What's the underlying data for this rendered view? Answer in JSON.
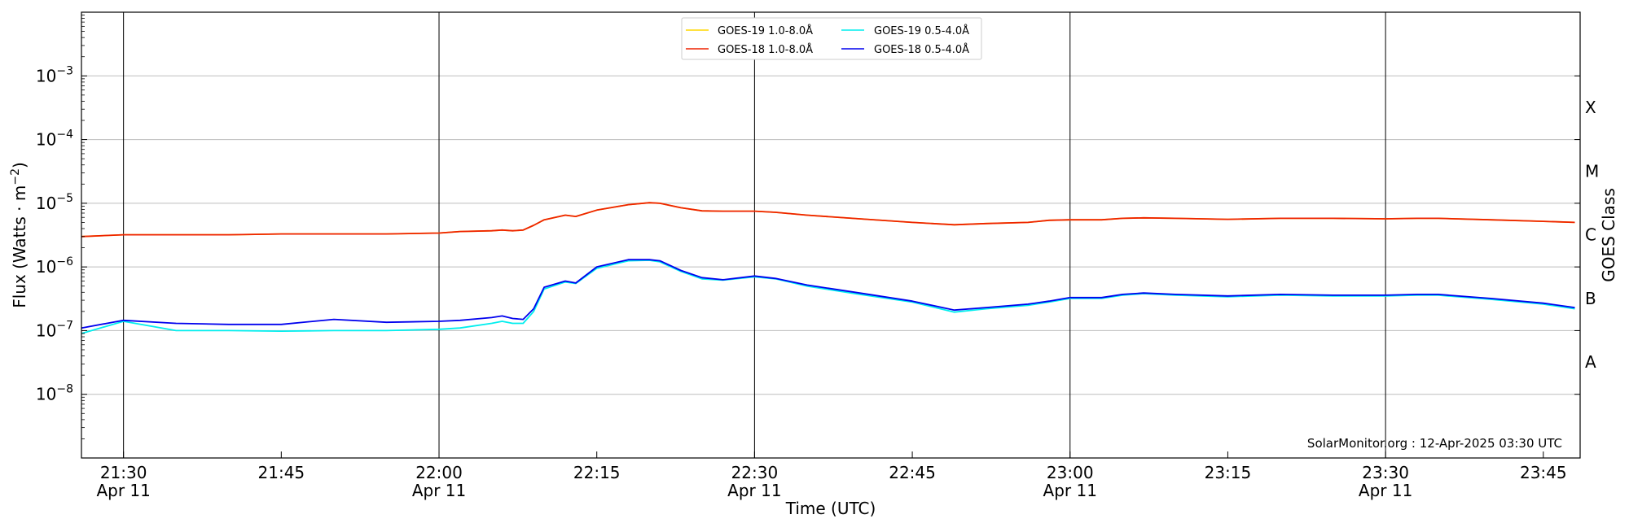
{
  "chart_data": {
    "type": "line",
    "title": "",
    "xlabel": "Time (UTC)",
    "ylabel": "Flux (Watts · m⁻²)",
    "ylabel_parts": {
      "base": "Flux (Watts · m",
      "exponent": "−2",
      "close": ")"
    },
    "right_ylabel": "GOES Class",
    "y_scale": "log",
    "ylim": [
      1e-09,
      0.01
    ],
    "xlim": [
      "2025-04-11 21:26:00",
      "2025-04-11 23:48:30"
    ],
    "grid": {
      "horizontal": true,
      "vertical_major": true
    },
    "legend_position": "top-center",
    "watermark": "SolarMonitor.org : 12-Apr-2025 03:30 UTC",
    "y_ticks": [
      {
        "value": 1e-08,
        "mantissa": "10",
        "exponent": "−8"
      },
      {
        "value": 1e-07,
        "mantissa": "10",
        "exponent": "−7"
      },
      {
        "value": 1e-06,
        "mantissa": "10",
        "exponent": "−6"
      },
      {
        "value": 1e-05,
        "mantissa": "10",
        "exponent": "−5"
      },
      {
        "value": 0.0001,
        "mantissa": "10",
        "exponent": "−4"
      },
      {
        "value": 0.001,
        "mantissa": "10",
        "exponent": "−3"
      }
    ],
    "x_ticks": [
      {
        "time": "21:30",
        "date": "Apr 11",
        "major": true
      },
      {
        "time": "21:45",
        "date": "",
        "major": false
      },
      {
        "time": "22:00",
        "date": "Apr 11",
        "major": true
      },
      {
        "time": "22:15",
        "date": "",
        "major": false
      },
      {
        "time": "22:30",
        "date": "Apr 11",
        "major": true
      },
      {
        "time": "22:45",
        "date": "",
        "major": false
      },
      {
        "time": "23:00",
        "date": "Apr 11",
        "major": true
      },
      {
        "time": "23:15",
        "date": "",
        "major": false
      },
      {
        "time": "23:30",
        "date": "Apr 11",
        "major": true
      },
      {
        "time": "23:45",
        "date": "",
        "major": false
      }
    ],
    "goes_classes": [
      {
        "label": "A",
        "flux": 3.2e-08
      },
      {
        "label": "B",
        "flux": 3.2e-07
      },
      {
        "label": "C",
        "flux": 3.2e-06
      },
      {
        "label": "M",
        "flux": 3.2e-05
      },
      {
        "label": "X",
        "flux": 0.00032
      }
    ],
    "x": [
      "21:26",
      "21:30",
      "21:35",
      "21:40",
      "21:45",
      "21:50",
      "21:55",
      "22:00",
      "22:02",
      "22:05",
      "22:06",
      "22:07",
      "22:08",
      "22:09",
      "22:10",
      "22:12",
      "22:13",
      "22:15",
      "22:18",
      "22:20",
      "22:21",
      "22:23",
      "22:25",
      "22:27",
      "22:30",
      "22:32",
      "22:35",
      "22:40",
      "22:45",
      "22:49",
      "22:52",
      "22:56",
      "22:58",
      "23:00",
      "23:03",
      "23:05",
      "23:07",
      "23:10",
      "23:15",
      "23:20",
      "23:25",
      "23:30",
      "23:33",
      "23:35",
      "23:40",
      "23:45",
      "23:48"
    ],
    "series": [
      {
        "name": "GOES-19 1.0-8.0Å",
        "color": "#ffd700",
        "values": [
          3e-06,
          3.2e-06,
          3.2e-06,
          3.2e-06,
          3.3e-06,
          3.3e-06,
          3.3e-06,
          3.4e-06,
          3.6e-06,
          3.7e-06,
          3.8e-06,
          3.7e-06,
          3.8e-06,
          4.5e-06,
          5.5e-06,
          6.5e-06,
          6.2e-06,
          7.8e-06,
          9.5e-06,
          1.02e-05,
          1e-05,
          8.5e-06,
          7.6e-06,
          7.5e-06,
          7.5e-06,
          7.2e-06,
          6.5e-06,
          5.7e-06,
          5e-06,
          4.6e-06,
          4.8e-06,
          5e-06,
          5.4e-06,
          5.5e-06,
          5.5e-06,
          5.8e-06,
          5.9e-06,
          5.8e-06,
          5.6e-06,
          5.8e-06,
          5.8e-06,
          5.7e-06,
          5.8e-06,
          5.8e-06,
          5.5e-06,
          5.2e-06,
          5e-06
        ]
      },
      {
        "name": "GOES-18 1.0-8.0Å",
        "color": "#ee2200",
        "values": [
          3e-06,
          3.2e-06,
          3.2e-06,
          3.2e-06,
          3.3e-06,
          3.3e-06,
          3.3e-06,
          3.4e-06,
          3.6e-06,
          3.7e-06,
          3.8e-06,
          3.7e-06,
          3.8e-06,
          4.5e-06,
          5.5e-06,
          6.5e-06,
          6.2e-06,
          7.8e-06,
          9.5e-06,
          1.02e-05,
          1e-05,
          8.5e-06,
          7.6e-06,
          7.5e-06,
          7.5e-06,
          7.2e-06,
          6.5e-06,
          5.7e-06,
          5e-06,
          4.6e-06,
          4.8e-06,
          5e-06,
          5.4e-06,
          5.5e-06,
          5.5e-06,
          5.8e-06,
          5.9e-06,
          5.8e-06,
          5.6e-06,
          5.8e-06,
          5.8e-06,
          5.7e-06,
          5.8e-06,
          5.8e-06,
          5.5e-06,
          5.2e-06,
          5e-06
        ]
      },
      {
        "name": "GOES-19 0.5-4.0Å",
        "color": "#00eeee",
        "values": [
          9e-08,
          1.4e-07,
          1e-07,
          1e-07,
          9.8e-08,
          1e-07,
          1e-07,
          1.05e-07,
          1.1e-07,
          1.3e-07,
          1.4e-07,
          1.3e-07,
          1.3e-07,
          2e-07,
          4.5e-07,
          5.8e-07,
          5.5e-07,
          9.5e-07,
          1.25e-06,
          1.27e-06,
          1.2e-06,
          8.5e-07,
          6.5e-07,
          6.2e-07,
          7e-07,
          6.5e-07,
          5e-07,
          3.7e-07,
          2.8e-07,
          1.95e-07,
          2.2e-07,
          2.5e-07,
          2.8e-07,
          3.2e-07,
          3.2e-07,
          3.6e-07,
          3.8e-07,
          3.6e-07,
          3.4e-07,
          3.6e-07,
          3.5e-07,
          3.5e-07,
          3.6e-07,
          3.6e-07,
          3.1e-07,
          2.6e-07,
          2.2e-07
        ]
      },
      {
        "name": "GOES-18 0.5-4.0Å",
        "color": "#0000ee",
        "values": [
          1.1e-07,
          1.45e-07,
          1.3e-07,
          1.25e-07,
          1.25e-07,
          1.5e-07,
          1.35e-07,
          1.4e-07,
          1.45e-07,
          1.6e-07,
          1.7e-07,
          1.55e-07,
          1.5e-07,
          2.2e-07,
          4.8e-07,
          6e-07,
          5.6e-07,
          1e-06,
          1.3e-06,
          1.3e-06,
          1.25e-06,
          8.8e-07,
          6.8e-07,
          6.3e-07,
          7.2e-07,
          6.6e-07,
          5.2e-07,
          3.9e-07,
          2.9e-07,
          2.1e-07,
          2.3e-07,
          2.6e-07,
          2.9e-07,
          3.3e-07,
          3.3e-07,
          3.7e-07,
          3.9e-07,
          3.7e-07,
          3.5e-07,
          3.7e-07,
          3.6e-07,
          3.6e-07,
          3.7e-07,
          3.7e-07,
          3.2e-07,
          2.7e-07,
          2.3e-07
        ]
      }
    ]
  }
}
